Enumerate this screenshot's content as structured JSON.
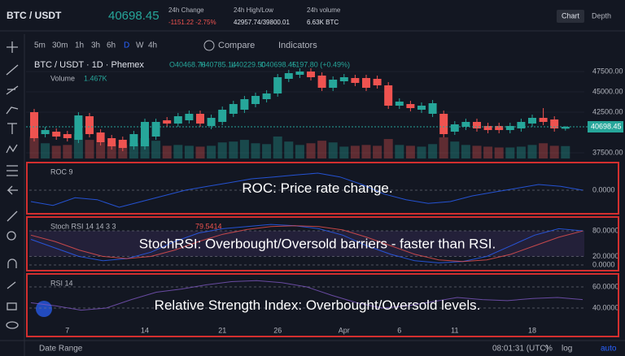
{
  "header": {
    "pair": "BTC / USDT",
    "last_price": "40698.45",
    "stats": [
      {
        "label": "24h Change",
        "value": "-1151.22 -2.75%"
      },
      {
        "label": "24h High/Low",
        "value": "42957.74/39800.01"
      },
      {
        "label": "24h volume",
        "value": "6.63K BTC"
      }
    ],
    "tabs": [
      "Chart",
      "Depth"
    ]
  },
  "toolbar": {
    "intervals": [
      "5m",
      "30m",
      "1h",
      "3h",
      "6h",
      "D",
      "W",
      "4h"
    ],
    "active_interval": "D",
    "compare": "Compare",
    "indicators": "Indicators"
  },
  "chart_data": {
    "type": "candlestick",
    "title": "BTC / USDT · 1D · Phemex",
    "legend_ohlc": [
      "O40468.76",
      "H40785.14",
      "L40229.50",
      "C40698.45",
      "+197.80 (+0.49%)"
    ],
    "volume_label": "Volume",
    "volume_value_label": "1.467K",
    "categories": [
      null,
      null,
      null,
      "7",
      null,
      null,
      null,
      null,
      null,
      null,
      "14",
      null,
      null,
      null,
      null,
      null,
      null,
      "21",
      null,
      null,
      null,
      null,
      "26",
      null,
      null,
      null,
      null,
      null,
      "Apr",
      null,
      null,
      null,
      null,
      "6",
      null,
      null,
      null,
      null,
      "11",
      null,
      null,
      null,
      null,
      null,
      null,
      "18",
      null,
      null,
      null
    ],
    "open": [
      42500,
      39800,
      40100,
      39800,
      39100,
      42000,
      40000,
      39300,
      39100,
      38300,
      38300,
      39500,
      41500,
      41100,
      41500,
      42300,
      40800,
      41300,
      42300,
      42800,
      43500,
      44100,
      44800,
      46600,
      47100,
      47500,
      47000,
      45500,
      46300,
      46700,
      46700,
      46600,
      45800,
      43300,
      43500,
      42800,
      42300,
      42300,
      40100,
      40700,
      41300,
      40800,
      40800,
      40300,
      40500,
      41100,
      41800,
      41600,
      40468.76
    ],
    "high": [
      42900,
      40700,
      40500,
      40200,
      42500,
      42400,
      40400,
      39700,
      39500,
      40200,
      41700,
      41700,
      41900,
      42400,
      42700,
      42700,
      42200,
      43200,
      43900,
      44500,
      44900,
      45200,
      47200,
      47700,
      47900,
      47900,
      47400,
      46900,
      47200,
      47100,
      47100,
      47000,
      46200,
      44200,
      43900,
      43700,
      44000,
      42700,
      41400,
      41700,
      41700,
      41200,
      41200,
      41200,
      41700,
      42200,
      43000,
      42000,
      40785.14
    ],
    "low": [
      38900,
      39400,
      39100,
      38900,
      38700,
      39400,
      38400,
      37900,
      37700,
      37900,
      37900,
      39100,
      40700,
      40700,
      41100,
      40700,
      40400,
      40900,
      41900,
      42400,
      43100,
      43700,
      44400,
      46200,
      46700,
      46400,
      45100,
      45100,
      45900,
      45700,
      45100,
      45400,
      42900,
      42900,
      42600,
      42400,
      41900,
      39400,
      39700,
      40300,
      40100,
      39900,
      39900,
      39900,
      40100,
      40700,
      40900,
      40100,
      40229.5
    ],
    "close": [
      39300,
      40300,
      39500,
      39300,
      42100,
      39800,
      38800,
      38300,
      38100,
      39800,
      41300,
      41300,
      41100,
      42000,
      42300,
      41100,
      41800,
      42800,
      43500,
      44100,
      44500,
      44800,
      46800,
      47300,
      47500,
      46800,
      45500,
      46500,
      46800,
      46100,
      45500,
      45800,
      43300,
      43800,
      43000,
      43300,
      43600,
      39800,
      41000,
      41300,
      40500,
      40300,
      40300,
      40800,
      41300,
      41800,
      41300,
      40500,
      40698.45
    ],
    "volume": [
      2.6,
      1.8,
      1.5,
      1.6,
      2.9,
      2.2,
      1.9,
      1.7,
      1.6,
      1.8,
      2.4,
      2.1,
      1.5,
      1.6,
      1.5,
      1.4,
      1.5,
      1.9,
      2.0,
      2.2,
      1.8,
      1.7,
      2.6,
      2.0,
      1.6,
      1.8,
      2.1,
      1.9,
      1.4,
      1.5,
      1.6,
      1.5,
      2.3,
      1.6,
      1.5,
      1.4,
      1.7,
      2.5,
      2.0,
      1.6,
      1.5,
      1.4,
      1.3,
      1.3,
      1.4,
      1.6,
      1.8,
      1.5,
      1.467
    ],
    "volume_ylim": [
      0,
      12
    ],
    "up_color": "#26a69a",
    "down_color": "#ef5350",
    "ylim": [
      36800,
      49300
    ],
    "yticks": [
      {
        "value": 47500,
        "label": "47500.00"
      },
      {
        "value": 45000,
        "label": "45000.00"
      },
      {
        "value": 42500,
        "label": "42500.00"
      },
      {
        "value": 37500,
        "label": "37500.00"
      }
    ],
    "price_line": {
      "value": 40698.45,
      "label": "40698.45"
    }
  },
  "indicators": [
    {
      "type": "line",
      "name": "ROC 9",
      "annotation": "ROC: Price rate change.",
      "ylim": [
        -12,
        12
      ],
      "yticks": [
        {
          "value": 0,
          "label": "0.0000"
        }
      ],
      "series": [
        {
          "color": "#2962ff",
          "values": [
            -6,
            -8,
            -4,
            -5,
            -9,
            -6,
            -3,
            0,
            2,
            4,
            6,
            7,
            8,
            9,
            7,
            3,
            -2,
            -5,
            -7,
            -6,
            -3,
            -1,
            1,
            3,
            2,
            0
          ]
        }
      ]
    },
    {
      "type": "line",
      "name": "Stoch RSI 14 14 3 3",
      "annotation": "StochRSI: Overbought/Oversold barriers - faster than RSI.",
      "ylim": [
        0,
        100
      ],
      "yticks": [
        {
          "value": 80,
          "label": "80.0000"
        },
        {
          "value": 20,
          "label": "20.0000"
        },
        {
          "value": 0,
          "label": "0.0000"
        }
      ],
      "band": [
        20,
        80
      ],
      "series": [
        {
          "color": "#2962ff",
          "values": [
            60,
            40,
            20,
            10,
            15,
            30,
            55,
            75,
            85,
            90,
            95,
            92,
            85,
            70,
            45,
            25,
            10,
            5,
            8,
            20,
            45,
            70,
            85,
            80
          ]
        },
        {
          "color": "#ef5350",
          "values": [
            70,
            55,
            35,
            20,
            15,
            20,
            35,
            55,
            72,
            83,
            90,
            92,
            90,
            82,
            65,
            45,
            25,
            12,
            8,
            12,
            25,
            45,
            65,
            79.5414
          ]
        }
      ]
    },
    {
      "type": "line",
      "name": "RSI 14",
      "annotation": "Relative Strength Index: Overbought/Oversold levels.",
      "ylim": [
        30,
        70
      ],
      "yticks": [
        {
          "value": 60,
          "label": "60.0000"
        },
        {
          "value": 40,
          "label": "40.0000"
        }
      ],
      "series": [
        {
          "color": "#7e57c2",
          "values": [
            45,
            42,
            38,
            40,
            48,
            55,
            58,
            62,
            65,
            66,
            64,
            60,
            52,
            45,
            40,
            42,
            46,
            50,
            48,
            47,
            49,
            50,
            48
          ]
        }
      ]
    }
  ],
  "bottom_bar": {
    "date_range": "Date Range",
    "clock": "08:01:31 (UTC)",
    "options": [
      "%",
      "log",
      "auto"
    ]
  }
}
